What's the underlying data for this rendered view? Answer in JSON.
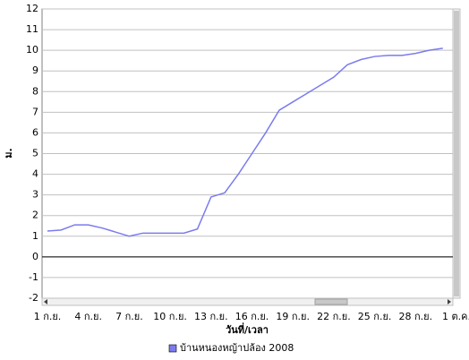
{
  "chart_data": {
    "type": "line",
    "y_label": "ม.",
    "x_label": "วันที่/เวลา",
    "categories": [
      "1 ก.ย.",
      null,
      null,
      "4 ก.ย.",
      null,
      null,
      "7 ก.ย.",
      null,
      null,
      "10 ก.ย.",
      null,
      null,
      "13 ก.ย.",
      null,
      null,
      "16 ก.ย.",
      null,
      null,
      "19 ก.ย.",
      null,
      null,
      "22 ก.ย.",
      null,
      null,
      "25 ก.ย.",
      null,
      null,
      "28 ก.ย.",
      null,
      null,
      "1 ต.ค."
    ],
    "series": [
      {
        "name": "บ้านหนองหญ้าปล้อง 2008",
        "color": "#7b7bef",
        "values": [
          1.25,
          1.3,
          1.55,
          1.55,
          1.4,
          1.2,
          1.0,
          1.15,
          1.15,
          1.15,
          1.15,
          1.35,
          2.9,
          3.1,
          4.0,
          5.0,
          6.0,
          7.1,
          7.5,
          7.9,
          8.3,
          8.7,
          9.3,
          9.55,
          9.7,
          9.75,
          9.75,
          9.85,
          10.0,
          10.1,
          null
        ]
      }
    ],
    "ylim": [
      -2,
      12
    ],
    "yticks": [
      -2,
      -1,
      0,
      1,
      2,
      3,
      4,
      5,
      6,
      7,
      8,
      9,
      10,
      11,
      12
    ],
    "grid": true
  }
}
